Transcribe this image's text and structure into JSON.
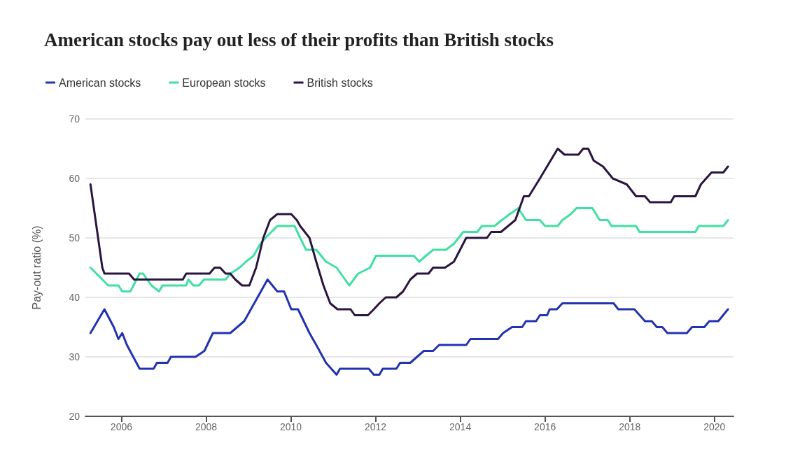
{
  "chart_data": {
    "type": "line",
    "title": "American stocks pay out less of their profits than British stocks",
    "ylabel": "Pay-out ratio (%)",
    "xlim": [
      2005.15,
      2020.45
    ],
    "xticks": [
      2006,
      2008,
      2010,
      2012,
      2014,
      2016,
      2018,
      2020
    ],
    "ylim": [
      20,
      70
    ],
    "yticks": [
      20,
      30,
      40,
      50,
      60,
      70
    ],
    "grid": "y",
    "legend": "top left",
    "marker": "none",
    "line_style": "solid",
    "series": [
      {
        "name": "American stocks",
        "color": "#2233b0",
        "x": [
          2005.27,
          2005.6,
          2005.82,
          2005.93,
          2006.02,
          2006.13,
          2006.43,
          2006.76,
          2006.84,
          2007.09,
          2007.17,
          2007.75,
          2007.96,
          2008.16,
          2008.57,
          2008.9,
          2009.45,
          2009.68,
          2009.84,
          2010.01,
          2010.17,
          2010.44,
          2010.6,
          2010.83,
          2011.08,
          2011.16,
          2011.84,
          2011.96,
          2012.09,
          2012.17,
          2012.49,
          2012.58,
          2012.82,
          2012.98,
          2013.14,
          2013.36,
          2013.5,
          2014.14,
          2014.24,
          2014.89,
          2015.01,
          2015.22,
          2015.46,
          2015.55,
          2015.79,
          2015.88,
          2016.05,
          2016.11,
          2016.28,
          2016.41,
          2017.62,
          2017.73,
          2018.11,
          2018.36,
          2018.52,
          2018.64,
          2018.77,
          2018.89,
          2019.35,
          2019.47,
          2019.76,
          2019.88,
          2020.09,
          2020.32
        ],
        "values": [
          34,
          38,
          35,
          33,
          34,
          32,
          28,
          28,
          29,
          29,
          30,
          30,
          31,
          34,
          34,
          36,
          43,
          41,
          41,
          38,
          38,
          34,
          32,
          29,
          27,
          28,
          28,
          27,
          27,
          28,
          28,
          29,
          29,
          30,
          31,
          31,
          32,
          32,
          33,
          33,
          34,
          35,
          35,
          36,
          36,
          37,
          37,
          38,
          38,
          39,
          39,
          38,
          38,
          36,
          36,
          35,
          35,
          34,
          34,
          35,
          35,
          36,
          36,
          38
        ]
      },
      {
        "name": "European stocks",
        "color": "#3fe0a2",
        "x": [
          2005.27,
          2005.41,
          2005.55,
          2005.69,
          2005.93,
          2006.02,
          2006.21,
          2006.43,
          2006.51,
          2006.71,
          2006.89,
          2006.97,
          2007.53,
          2007.58,
          2007.7,
          2007.83,
          2007.95,
          2008.46,
          2008.57,
          2008.79,
          2008.94,
          2009.12,
          2009.28,
          2009.4,
          2009.68,
          2010.09,
          2010.22,
          2010.36,
          2010.6,
          2010.83,
          2011.08,
          2011.38,
          2011.59,
          2011.87,
          2012.01,
          2012.9,
          2013.03,
          2013.19,
          2013.36,
          2013.66,
          2013.85,
          2014.07,
          2014.4,
          2014.51,
          2014.81,
          2014.98,
          2015.17,
          2015.37,
          2015.55,
          2015.88,
          2016.0,
          2016.3,
          2016.41,
          2016.61,
          2016.74,
          2017.12,
          2017.29,
          2017.48,
          2017.57,
          2018.15,
          2018.23,
          2019.55,
          2019.63,
          2020.21,
          2020.32
        ],
        "values": [
          45,
          44,
          43,
          42,
          42,
          41,
          41,
          44,
          44,
          42,
          41,
          42,
          42,
          43,
          42,
          42,
          43,
          43,
          44,
          45,
          46,
          47,
          49,
          50,
          52,
          52,
          50,
          48,
          48,
          46,
          45,
          42,
          44,
          45,
          47,
          47,
          46,
          47,
          48,
          48,
          49,
          51,
          51,
          52,
          52,
          53,
          54,
          55,
          53,
          53,
          52,
          52,
          53,
          54,
          55,
          55,
          53,
          53,
          52,
          52,
          51,
          51,
          52,
          52,
          53
        ]
      },
      {
        "name": "British stocks",
        "color": "#2a1540",
        "x": [
          2005.27,
          2005.55,
          2005.6,
          2006.18,
          2006.3,
          2007.45,
          2007.53,
          2008.08,
          2008.2,
          2008.33,
          2008.46,
          2008.57,
          2008.69,
          2008.85,
          2009.02,
          2009.18,
          2009.35,
          2009.51,
          2009.68,
          2010.01,
          2010.14,
          2010.22,
          2010.44,
          2010.6,
          2010.77,
          2010.93,
          2011.1,
          2011.41,
          2011.51,
          2011.82,
          2011.96,
          2012.09,
          2012.24,
          2012.49,
          2012.65,
          2012.82,
          2012.98,
          2013.25,
          2013.36,
          2013.64,
          2013.85,
          2014.14,
          2014.63,
          2014.73,
          2014.96,
          2015.13,
          2015.3,
          2015.5,
          2015.62,
          2015.88,
          2016.3,
          2016.46,
          2016.79,
          2016.9,
          2017.02,
          2017.15,
          2017.37,
          2017.6,
          2017.93,
          2018.15,
          2018.36,
          2018.48,
          2018.97,
          2019.05,
          2019.55,
          2019.68,
          2019.93,
          2020.21,
          2020.32
        ],
        "values": [
          59,
          45,
          44,
          44,
          43,
          43,
          44,
          44,
          45,
          45,
          44,
          44,
          43,
          42,
          42,
          45,
          50,
          53,
          54,
          54,
          53,
          52,
          50,
          46,
          42,
          39,
          38,
          38,
          37,
          37,
          38,
          39,
          40,
          40,
          41,
          43,
          44,
          44,
          45,
          45,
          46,
          50,
          50,
          51,
          51,
          52,
          53,
          57,
          57,
          60,
          65,
          64,
          64,
          65,
          65,
          63,
          62,
          60,
          59,
          57,
          57,
          56,
          56,
          57,
          57,
          59,
          61,
          61,
          62
        ]
      }
    ]
  }
}
